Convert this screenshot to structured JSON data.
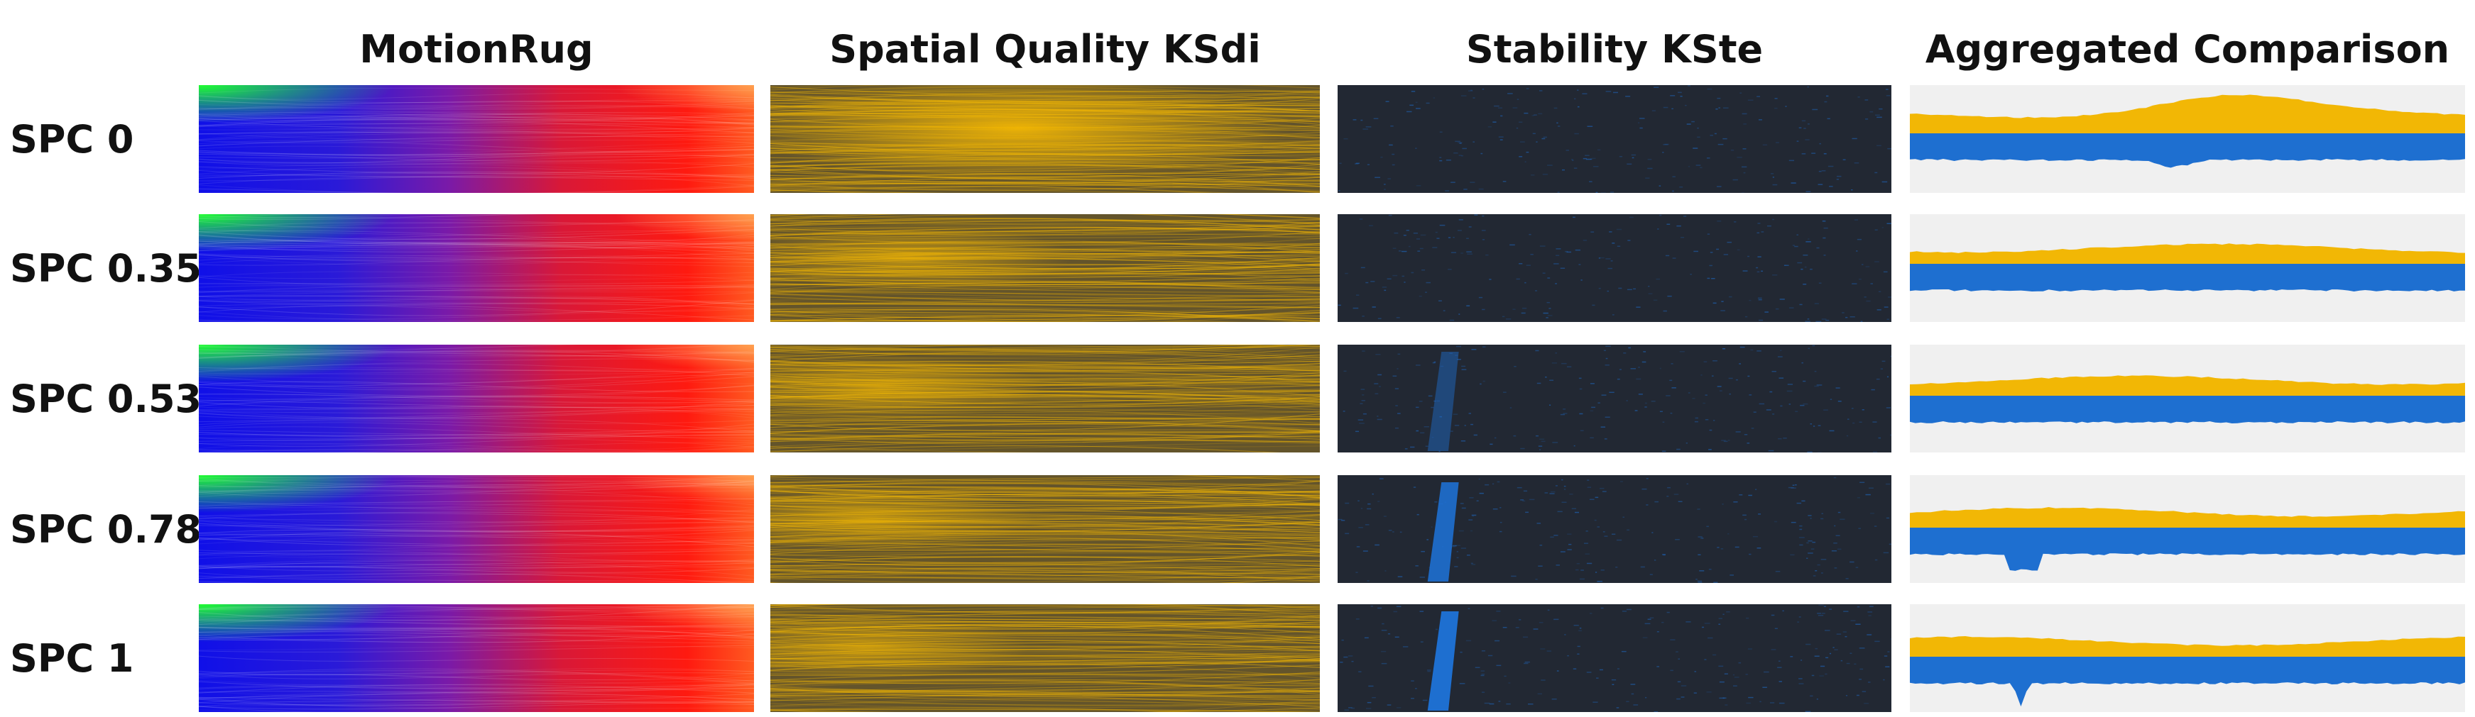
{
  "columns": {
    "motionrug": "MotionRug",
    "spatial": "Spatial Quality KSdi",
    "stability": "Stability KSte",
    "aggregated": "Aggregated Comparison"
  },
  "rows": [
    {
      "label": "SPC 0"
    },
    {
      "label": "SPC 0.35"
    },
    {
      "label": "SPC 0.53"
    },
    {
      "label": "SPC 0.78"
    },
    {
      "label": "SPC 1"
    }
  ],
  "colors": {
    "spatial_quality": "#f2b705",
    "stability": "#1e6fd0",
    "aggregated_background": "#f0f0f0",
    "ksdi_background": "#4a4232",
    "kste_background": "#222833"
  }
}
